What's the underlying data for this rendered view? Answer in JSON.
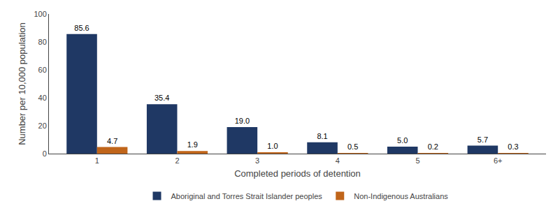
{
  "chart_data": {
    "type": "bar",
    "categories": [
      "1",
      "2",
      "3",
      "4",
      "5",
      "6+"
    ],
    "series": [
      {
        "name": "Aboriginal and Torres Strait Islander peoples",
        "color": "#1F3864",
        "values": [
          85.6,
          35.4,
          19.0,
          8.1,
          5.0,
          5.7
        ],
        "value_labels": [
          "85.6",
          "35.4",
          "19.0",
          "8.1",
          "5.0",
          "5.7"
        ]
      },
      {
        "name": "Non-Indigenous Australians",
        "color": "#C0651A",
        "values": [
          4.7,
          1.9,
          1.0,
          0.5,
          0.2,
          0.3
        ],
        "value_labels": [
          "4.7",
          "1.9",
          "1.0",
          "0.5",
          "0.2",
          "0.3"
        ]
      }
    ],
    "xlabel": "Completed periods of detention",
    "ylabel": "Number per 10,000 population",
    "ylim": [
      0,
      100
    ],
    "yticks": [
      0,
      20,
      40,
      60,
      80,
      100
    ],
    "grid": false,
    "legend": "bottom",
    "data_labels": true
  }
}
